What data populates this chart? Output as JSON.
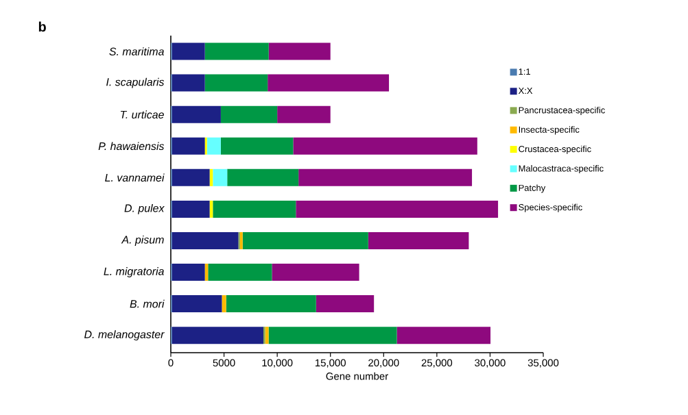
{
  "chart_data": {
    "type": "bar",
    "orientation": "horizontal",
    "stacked": true,
    "annotations": [
      "b"
    ],
    "xlabel": "Gene number",
    "categories": [
      "S. maritima",
      "I. scapularis",
      "T. urticae",
      "P. hawaiensis",
      "L. vannamei",
      "D. pulex",
      "A. pisum",
      "L. migratoria",
      "B. mori",
      "D. melanogaster"
    ],
    "xlim": [
      0,
      35000
    ],
    "xticks": [
      0,
      5000,
      {
        "value": 10000,
        "label": "10,000"
      },
      {
        "value": 15000,
        "label": "15,000"
      },
      {
        "value": 20000,
        "label": "20,000"
      },
      {
        "value": 25000,
        "label": "25,000"
      },
      {
        "value": 30000,
        "label": "30,000"
      },
      {
        "value": 35000,
        "label": "35,000"
      }
    ],
    "legend": "right",
    "grid": false,
    "series": [
      {
        "name": "1:1",
        "color": "#4a7bb0",
        "values": [
          100,
          100,
          100,
          100,
          100,
          100,
          100,
          100,
          100,
          100
        ]
      },
      {
        "name": "X:X",
        "color": "#1c2185",
        "values": [
          3100,
          3100,
          4600,
          3100,
          3550,
          3550,
          6250,
          3100,
          4700,
          8600
        ]
      },
      {
        "name": "Pancrustacea-specific",
        "color": "#8aaa50",
        "values": [
          0,
          0,
          0,
          0,
          0,
          0,
          150,
          0,
          0,
          170
        ]
      },
      {
        "name": "Insecta-specific",
        "color": "#ffba00",
        "values": [
          0,
          0,
          0,
          0,
          0,
          0,
          250,
          300,
          400,
          320
        ]
      },
      {
        "name": "Crustacea-specific",
        "color": "#ffff00",
        "values": [
          0,
          0,
          0,
          200,
          300,
          300,
          0,
          0,
          0,
          0
        ]
      },
      {
        "name": "Malocastraca-specific",
        "color": "#66ffff",
        "values": [
          0,
          0,
          0,
          1300,
          1350,
          0,
          0,
          0,
          0,
          0
        ]
      },
      {
        "name": "Patchy",
        "color": "#009845",
        "values": [
          6000,
          5900,
          5300,
          6800,
          6700,
          7800,
          11800,
          6000,
          8450,
          12050
        ]
      },
      {
        "name": "Species-specific",
        "color": "#8e097e",
        "values": [
          5800,
          11400,
          5000,
          17300,
          16300,
          19000,
          9450,
          8200,
          5440,
          8800
        ]
      }
    ]
  }
}
